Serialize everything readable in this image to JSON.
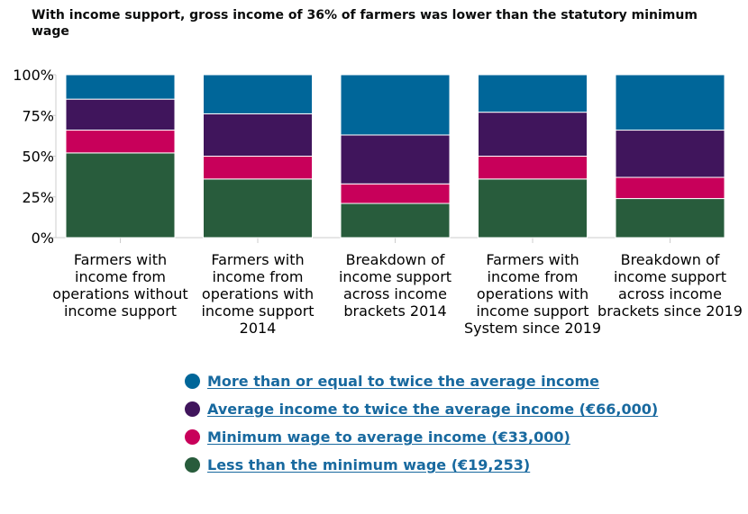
{
  "title": "With income support, gross income of 36% of farmers was lower than the statutory minimum wage",
  "chart_data": {
    "type": "bar",
    "stacked": true,
    "categories": [
      [
        "Farmers with",
        "income from",
        "operations without",
        "income support"
      ],
      [
        "Farmers with",
        "income from",
        "operations with",
        "income support",
        "2014"
      ],
      [
        "Breakdown of",
        "income support",
        "across income",
        "brackets 2014"
      ],
      [
        "Farmers with",
        "income from",
        "operations with",
        "income support",
        "System since 2019"
      ],
      [
        "Breakdown of",
        "income support",
        "across income",
        "brackets since 2019"
      ]
    ],
    "series": [
      {
        "name": "Less than the minimum wage (€19,253)",
        "color": "#285c3c",
        "values": [
          52,
          36,
          21,
          36,
          24
        ]
      },
      {
        "name": "Minimum wage to average income (€33,000)",
        "color": "#c8005a",
        "values": [
          14,
          14,
          12,
          14,
          13
        ]
      },
      {
        "name": "Average income to twice the average income (€66,000)",
        "color": "#40155c",
        "values": [
          19,
          26,
          30,
          27,
          29
        ]
      },
      {
        "name": "More than or equal to twice the average income",
        "color": "#006699",
        "values": [
          15,
          24,
          37,
          23,
          34
        ]
      }
    ],
    "yticks": [
      "0%",
      "25%",
      "50%",
      "75%",
      "100%"
    ],
    "ylim": [
      0,
      100
    ],
    "grid": false,
    "legend_position": "bottom"
  },
  "legend": [
    {
      "label": "More than or equal to twice the average income",
      "color": "#006699"
    },
    {
      "label": "Average income to twice the average income (€66,000)",
      "color": "#40155c"
    },
    {
      "label": "Minimum wage to average income (€33,000)",
      "color": "#c8005a"
    },
    {
      "label": "Less than the minimum wage (€19,253)",
      "color": "#285c3c"
    }
  ]
}
